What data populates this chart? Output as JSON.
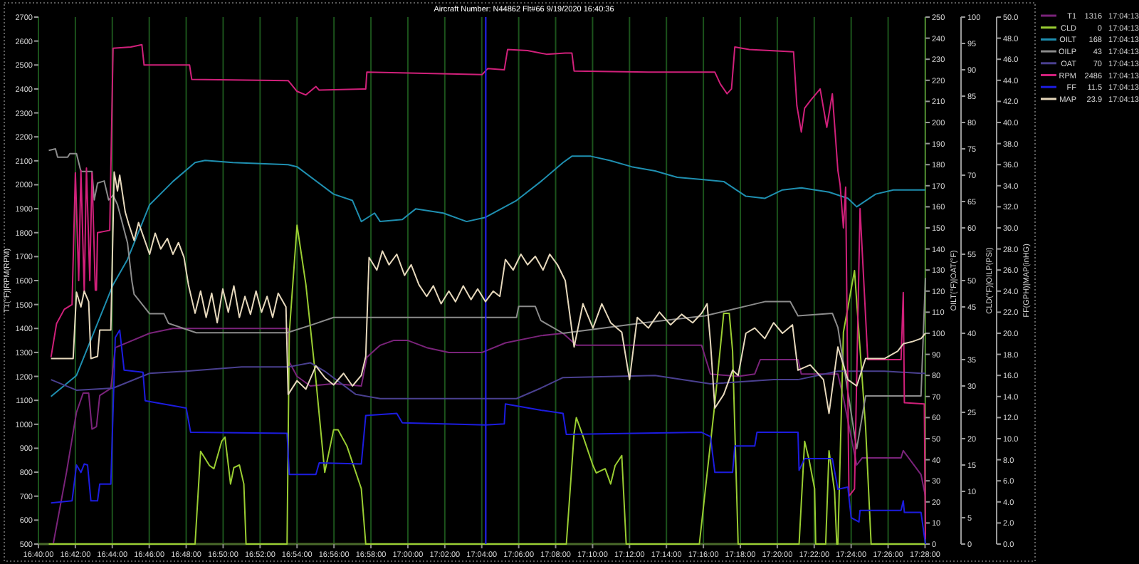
{
  "chart_data": [
    {
      "type": "line",
      "title": "Aircraft Number: N44862 Flt#66 9/19/2020 16:40:36",
      "ylabel": "T1(°F)|RPM(RPM)",
      "y2label": "OILT(°F)|OAT(°F)",
      "y3label": "CLD(°F)|OILP(PSI)",
      "xlim": [
        16.66667,
        17.467
      ],
      "xticks": [
        {
          "value": 16.66667,
          "label": "16:40:00"
        },
        {
          "value": 16.7,
          "label": "16:42:00"
        },
        {
          "value": 16.73333,
          "label": "16:44:00"
        },
        {
          "value": 16.76667,
          "label": "16:46:00"
        },
        {
          "value": 16.8,
          "label": "16:48:00"
        },
        {
          "value": 16.83333,
          "label": "16:50:00"
        },
        {
          "value": 16.86667,
          "label": "16:52:00"
        },
        {
          "value": 16.9,
          "label": "16:54:00"
        },
        {
          "value": 16.93333,
          "label": "16:56:00"
        },
        {
          "value": 16.96667,
          "label": "16:58:00"
        },
        {
          "value": 17.0,
          "label": "17:00:00"
        },
        {
          "value": 17.03333,
          "label": "17:02:00"
        },
        {
          "value": 17.06667,
          "label": "17:04:00"
        },
        {
          "value": 17.1,
          "label": "17:06:00"
        },
        {
          "value": 17.13333,
          "label": "17:08:00"
        },
        {
          "value": 17.16667,
          "label": "17:10:00"
        },
        {
          "value": 17.2,
          "label": "17:12:00"
        },
        {
          "value": 17.23333,
          "label": "17:14:00"
        },
        {
          "value": 17.26667,
          "label": "17:16:00"
        },
        {
          "value": 17.3,
          "label": "17:18:00"
        },
        {
          "value": 17.33333,
          "label": "17:20:00"
        },
        {
          "value": 17.36667,
          "label": "17:22:00"
        },
        {
          "value": 17.4,
          "label": "17:24:00"
        },
        {
          "value": 17.43333,
          "label": "17:26:00"
        },
        {
          "value": 17.46667,
          "label": "17:28:00"
        }
      ],
      "ylim": [
        500,
        2700
      ],
      "yticks": [
        500,
        600,
        700,
        800,
        900,
        1000,
        1100,
        1200,
        1300,
        1400,
        1500,
        1600,
        1700,
        1800,
        1900,
        2000,
        2100,
        2200,
        2300,
        2400,
        2500,
        2600,
        2700
      ],
      "y2lim": [
        0,
        250
      ],
      "y2ticks": [
        0,
        10,
        20,
        30,
        40,
        50,
        60,
        70,
        80,
        90,
        100,
        110,
        120,
        130,
        140,
        150,
        160,
        170,
        180,
        190,
        200,
        210,
        220,
        230,
        240,
        250
      ],
      "y3lim": [
        0,
        100
      ],
      "y3ticks": [
        0,
        5,
        10,
        15,
        20,
        25,
        30,
        35,
        40,
        45,
        50,
        55,
        60,
        65,
        70,
        75,
        80,
        85,
        90,
        95,
        100
      ],
      "grid": "x",
      "legend": "top right",
      "ref_lines": [
        {
          "axis": "x",
          "value": 17.0703,
          "color": "#2424ff"
        }
      ],
      "series": [
        {
          "name": "T1 1316 17:04:13",
          "color": "#7a237a",
          "x": [
            16.68,
            16.692,
            16.701,
            16.707,
            16.712,
            16.715,
            16.719,
            16.722,
            16.732,
            16.736,
            16.767,
            16.788,
            16.892,
            16.893,
            16.9,
            16.912,
            16.933,
            16.958,
            16.963,
            16.975,
            16.987,
            17.0,
            17.017,
            17.037,
            17.067,
            17.088,
            17.12,
            17.14,
            17.152,
            17.265,
            17.273,
            17.298,
            17.313,
            17.318,
            17.352,
            17.355,
            17.388,
            17.393,
            17.405,
            17.41,
            17.413,
            17.445,
            17.447,
            17.463,
            17.467
          ],
          "values": [
            500,
            800,
            1050,
            1130,
            1130,
            980,
            990,
            1120,
            1150,
            1320,
            1380,
            1400,
            1400,
            1260,
            1200,
            1160,
            1170,
            1160,
            1280,
            1330,
            1350,
            1350,
            1320,
            1300,
            1300,
            1340,
            1370,
            1380,
            1330,
            1330,
            1210,
            1200,
            1210,
            1270,
            1270,
            1210,
            1210,
            1110,
            830,
            860,
            860,
            860,
            890,
            790,
            700
          ]
        },
        {
          "name": "CLD 0 17:04:13",
          "color": "#9acd32",
          "axis": "y3",
          "x": [
            16.676,
            16.808,
            16.813,
            16.821,
            16.825,
            16.832,
            16.835,
            16.84,
            16.843,
            16.848,
            16.852,
            16.854,
            16.891,
            16.893,
            16.9,
            16.908,
            16.917,
            16.925,
            16.933,
            16.937,
            16.945,
            16.958,
            16.962,
            17.143,
            17.15,
            17.152,
            17.158,
            17.167,
            17.17,
            17.178,
            17.183,
            17.187,
            17.193,
            17.197,
            17.263,
            17.277,
            17.285,
            17.29,
            17.293,
            17.298,
            17.353,
            17.358,
            17.362,
            17.367,
            17.368,
            17.377,
            17.38,
            17.385,
            17.387,
            17.388,
            17.393,
            17.403,
            17.413,
            17.418,
            17.467
          ],
          "values": [
            0,
            0,
            17.6,
            14.9,
            14.3,
            19.5,
            20.3,
            11.4,
            14.5,
            15,
            11.4,
            0,
            0,
            40,
            60.5,
            49.2,
            31.2,
            13.6,
            21.7,
            21.7,
            18.6,
            10.5,
            0,
            0,
            21,
            24,
            20.5,
            14.9,
            13.5,
            14.3,
            11.4,
            14.9,
            16.8,
            0,
            0,
            26.7,
            43.8,
            43.8,
            36.6,
            0,
            0,
            19.5,
            16,
            10.5,
            0,
            0,
            17.7,
            10,
            0,
            0,
            40.2,
            51.9,
            22.2,
            0,
            0
          ]
        },
        {
          "name": "OILT 168 17:04:13",
          "color": "#1f8fb0",
          "axis": "y2",
          "x": [
            16.678,
            16.701,
            16.734,
            16.747,
            16.767,
            16.788,
            16.808,
            16.817,
            16.842,
            16.892,
            16.9,
            16.933,
            16.95,
            16.958,
            16.97,
            16.975,
            16.995,
            17.007,
            17.032,
            17.053,
            17.07,
            17.098,
            17.12,
            17.14,
            17.148,
            17.165,
            17.182,
            17.202,
            17.223,
            17.243,
            17.265,
            17.285,
            17.305,
            17.322,
            17.338,
            17.355,
            17.38,
            17.397,
            17.405,
            17.422,
            17.438,
            17.467
          ],
          "values": [
            70,
            80,
            123,
            135,
            161,
            172,
            181,
            182,
            181,
            180,
            179,
            166,
            163,
            153,
            157,
            153,
            154,
            159,
            157,
            153,
            155,
            163,
            172,
            181,
            184,
            184,
            182,
            179,
            177,
            174,
            173,
            172,
            165,
            164,
            168,
            169,
            167,
            164,
            160,
            166,
            168,
            168
          ]
        },
        {
          "name": "OILP 43 17:04:13",
          "color": "#8c8c8c",
          "axis": "y3",
          "x": [
            16.676,
            16.682,
            16.684,
            16.693,
            16.695,
            16.701,
            16.705,
            16.715,
            16.717,
            16.72,
            16.726,
            16.73,
            16.734,
            16.738,
            16.747,
            16.751,
            16.753,
            16.767,
            16.78,
            16.784,
            16.809,
            16.891,
            16.912,
            16.933,
            17.098,
            17.1,
            17.115,
            17.12,
            17.14,
            17.213,
            17.268,
            17.322,
            17.345,
            17.352,
            17.383,
            17.388,
            17.405,
            17.413,
            17.463,
            17.467
          ],
          "values": [
            74.7,
            75,
            73.4,
            73.4,
            74.1,
            74.1,
            70.7,
            70.7,
            65.3,
            68.5,
            68.9,
            65.3,
            66.2,
            64.4,
            57.2,
            49.9,
            47.4,
            43.7,
            43.7,
            41.9,
            40.1,
            40.1,
            41.5,
            43,
            43,
            45.1,
            45.1,
            42.4,
            40,
            42,
            43.3,
            46,
            46,
            43.3,
            43.8,
            41.1,
            18.1,
            28.1,
            28.1,
            50.5
          ]
        },
        {
          "name": "OAT 70 17:04:13",
          "color": "#4a4090",
          "axis": "y2",
          "x": [
            16.678,
            16.701,
            16.734,
            16.767,
            16.8,
            16.85,
            16.892,
            16.912,
            16.925,
            16.953,
            16.975,
            17.098,
            17.12,
            17.14,
            17.223,
            17.273,
            17.33,
            17.352,
            17.388,
            17.43,
            17.463,
            17.467
          ],
          "values": [
            78,
            73,
            74,
            81,
            82,
            84,
            84,
            86,
            82,
            71,
            69,
            69,
            74,
            79,
            80,
            76,
            78,
            78,
            82,
            82,
            81,
            81
          ]
        },
        {
          "name": "RPM 2486 17:04:13",
          "color": "#d0207a",
          "x": [
            16.678,
            16.683,
            16.69,
            16.697,
            16.7,
            16.703,
            16.705,
            16.708,
            16.71,
            16.713,
            16.715,
            16.718,
            16.719,
            16.72,
            16.731,
            16.734,
            16.75,
            16.76,
            16.762,
            16.803,
            16.805,
            16.892,
            16.9,
            16.908,
            16.917,
            16.92,
            16.962,
            16.963,
            17.067,
            17.072,
            17.087,
            17.09,
            17.108,
            17.125,
            17.142,
            17.148,
            17.15,
            17.217,
            17.277,
            17.282,
            17.288,
            17.292,
            17.295,
            17.308,
            17.348,
            17.351,
            17.355,
            17.358,
            17.363,
            17.372,
            17.378,
            17.383,
            17.388,
            17.39,
            17.393,
            17.395,
            17.398,
            17.403,
            17.408,
            17.415,
            17.445,
            17.447,
            17.448,
            17.466,
            17.467
          ],
          "values": [
            1280,
            1420,
            1480,
            1500,
            2050,
            1600,
            2060,
            1550,
            2070,
            1600,
            2050,
            1560,
            1560,
            1800,
            1810,
            2570,
            2575,
            2585,
            2500,
            2500,
            2440,
            2435,
            2390,
            2375,
            2410,
            2395,
            2400,
            2470,
            2460,
            2485,
            2480,
            2565,
            2560,
            2545,
            2550,
            2550,
            2475,
            2470,
            2470,
            2420,
            2380,
            2400,
            2575,
            2565,
            2555,
            2330,
            2220,
            2320,
            2350,
            2400,
            2240,
            2380,
            2060,
            2000,
            1820,
            1990,
            700,
            730,
            1900,
            1270,
            1270,
            1550,
            1090,
            1085,
            520
          ]
        }
      ]
    },
    {
      "type": "line",
      "ylabel": "FF(GPH)|MAP(inHG)",
      "tick_labels": "y",
      "xlim": [
        16.66667,
        17.467
      ],
      "ylim": [
        0,
        50
      ],
      "yticks": [
        {
          "value": 0,
          "label": "0.0"
        },
        {
          "value": 2,
          "label": "2.0"
        },
        {
          "value": 4,
          "label": "4.0"
        },
        {
          "value": 6,
          "label": "6.0"
        },
        {
          "value": 8,
          "label": "8.0"
        },
        {
          "value": 10,
          "label": "10.0"
        },
        {
          "value": 12,
          "label": "12.0"
        },
        {
          "value": 14,
          "label": "14.0"
        },
        {
          "value": 16,
          "label": "16.0"
        },
        {
          "value": 18,
          "label": "18.0"
        },
        {
          "value": 20,
          "label": "20.0"
        },
        {
          "value": 22,
          "label": "22.0"
        },
        {
          "value": 24,
          "label": "24.0"
        },
        {
          "value": 26,
          "label": "26.0"
        },
        {
          "value": 28,
          "label": "28.0"
        },
        {
          "value": 30,
          "label": "30.0"
        },
        {
          "value": 32,
          "label": "32.0"
        },
        {
          "value": 34,
          "label": "34.0"
        },
        {
          "value": 36,
          "label": "36.0"
        },
        {
          "value": 38,
          "label": "38.0"
        },
        {
          "value": 40,
          "label": "40.0"
        },
        {
          "value": 42,
          "label": "42.0"
        },
        {
          "value": 44,
          "label": "44.0"
        },
        {
          "value": 46,
          "label": "46.0"
        },
        {
          "value": 48,
          "label": "48.0"
        },
        {
          "value": 50,
          "label": "50.0"
        }
      ],
      "series": [
        {
          "name": "FF 11.5 17:04:13",
          "color": "#1c1ce0",
          "x": [
            16.678,
            16.697,
            16.701,
            16.705,
            16.708,
            16.711,
            16.714,
            16.72,
            16.722,
            16.732,
            16.736,
            16.74,
            16.744,
            16.761,
            16.763,
            16.8,
            16.804,
            16.891,
            16.893,
            16.917,
            16.92,
            16.958,
            16.962,
            16.99,
            16.995,
            17.07,
            17.087,
            17.088,
            17.12,
            17.14,
            17.143,
            17.265,
            17.273,
            17.277,
            17.293,
            17.295,
            17.313,
            17.315,
            17.352,
            17.353,
            17.358,
            17.383,
            17.388,
            17.397,
            17.4,
            17.407,
            17.408,
            17.445,
            17.447,
            17.448,
            17.463,
            17.467
          ],
          "values": [
            3.9,
            4.1,
            7.5,
            6.8,
            7.6,
            7.5,
            4.1,
            4.1,
            5.7,
            5.7,
            19.6,
            20.3,
            16.5,
            16.3,
            13.6,
            12.9,
            10.6,
            10.5,
            6.6,
            6.6,
            7.7,
            7.6,
            12.2,
            12.4,
            11.5,
            11.3,
            11.4,
            13.3,
            12.7,
            12.4,
            10.4,
            10.6,
            10.2,
            6.8,
            6.8,
            9.3,
            9.3,
            10.6,
            10.6,
            7,
            8.1,
            8.1,
            5.2,
            5.4,
            2.5,
            2.1,
            3.2,
            3.2,
            4.1,
            3,
            3,
            0
          ]
        },
        {
          "name": "MAP 23.9 17:04:13",
          "color": "#e6d8bc",
          "x": [
            16.678,
            16.698,
            16.701,
            16.705,
            16.708,
            16.712,
            16.714,
            16.72,
            16.722,
            16.732,
            16.735,
            16.738,
            16.74,
            16.745,
            16.748,
            16.753,
            16.757,
            16.762,
            16.767,
            16.772,
            16.777,
            16.783,
            16.788,
            16.793,
            16.798,
            16.802,
            16.808,
            16.813,
            16.818,
            16.823,
            16.828,
            16.833,
            16.838,
            16.843,
            16.848,
            16.853,
            16.858,
            16.863,
            16.868,
            16.873,
            16.878,
            16.883,
            16.89,
            16.892,
            16.9,
            16.908,
            16.917,
            16.925,
            16.933,
            16.942,
            16.95,
            16.958,
            16.962,
            16.965,
            16.972,
            16.977,
            16.983,
            16.99,
            16.997,
            17.003,
            17.01,
            17.017,
            17.023,
            17.03,
            17.037,
            17.043,
            17.05,
            17.057,
            17.063,
            17.07,
            17.077,
            17.083,
            17.088,
            17.095,
            17.102,
            17.108,
            17.115,
            17.122,
            17.128,
            17.135,
            17.142,
            17.15,
            17.158,
            17.167,
            17.175,
            17.183,
            17.193,
            17.2,
            17.207,
            17.217,
            17.227,
            17.237,
            17.247,
            17.257,
            17.265,
            17.27,
            17.273,
            17.277,
            17.285,
            17.293,
            17.298,
            17.305,
            17.313,
            17.322,
            17.33,
            17.338,
            17.347,
            17.352,
            17.363,
            17.375,
            17.38,
            17.388,
            17.397,
            17.405,
            17.413,
            17.43,
            17.442,
            17.447,
            17.455,
            17.463,
            17.467
          ],
          "values": [
            17.6,
            17.6,
            23.9,
            22.5,
            24,
            23,
            17.6,
            17.8,
            20.3,
            20.3,
            35.3,
            33.5,
            35,
            31.5,
            30.4,
            28.8,
            30.5,
            29,
            27.5,
            29.5,
            28,
            29,
            27.5,
            28.6,
            27.2,
            24.6,
            21.9,
            24,
            21.5,
            23.8,
            21,
            24.2,
            22,
            24.5,
            21.5,
            23.5,
            21.8,
            24,
            22,
            23.5,
            21.5,
            23.8,
            22.5,
            14.2,
            15.5,
            14.7,
            16.9,
            15.8,
            15.1,
            16.2,
            15.0,
            16.0,
            17.8,
            27.2,
            26,
            27.8,
            26.5,
            27.5,
            25.5,
            26.5,
            24.6,
            23.5,
            24.5,
            22.8,
            24,
            23,
            24.5,
            23.2,
            24.2,
            23,
            24,
            23.5,
            27,
            26,
            27.5,
            26.5,
            27.3,
            26,
            27.5,
            26.5,
            25,
            18.7,
            22.8,
            20.5,
            22.8,
            21,
            20.1,
            15.6,
            21.5,
            20.5,
            22,
            20.8,
            21.8,
            21,
            21.9,
            22.8,
            19.2,
            12.9,
            14.2,
            16.5,
            16,
            20,
            20.5,
            19.5,
            21,
            20,
            20.8,
            16.5,
            17,
            15.6,
            12.4,
            18.7,
            15.6,
            15,
            17.6,
            17.6,
            18.3,
            19,
            19.2,
            19.5,
            20
          ]
        }
      ]
    }
  ]
}
